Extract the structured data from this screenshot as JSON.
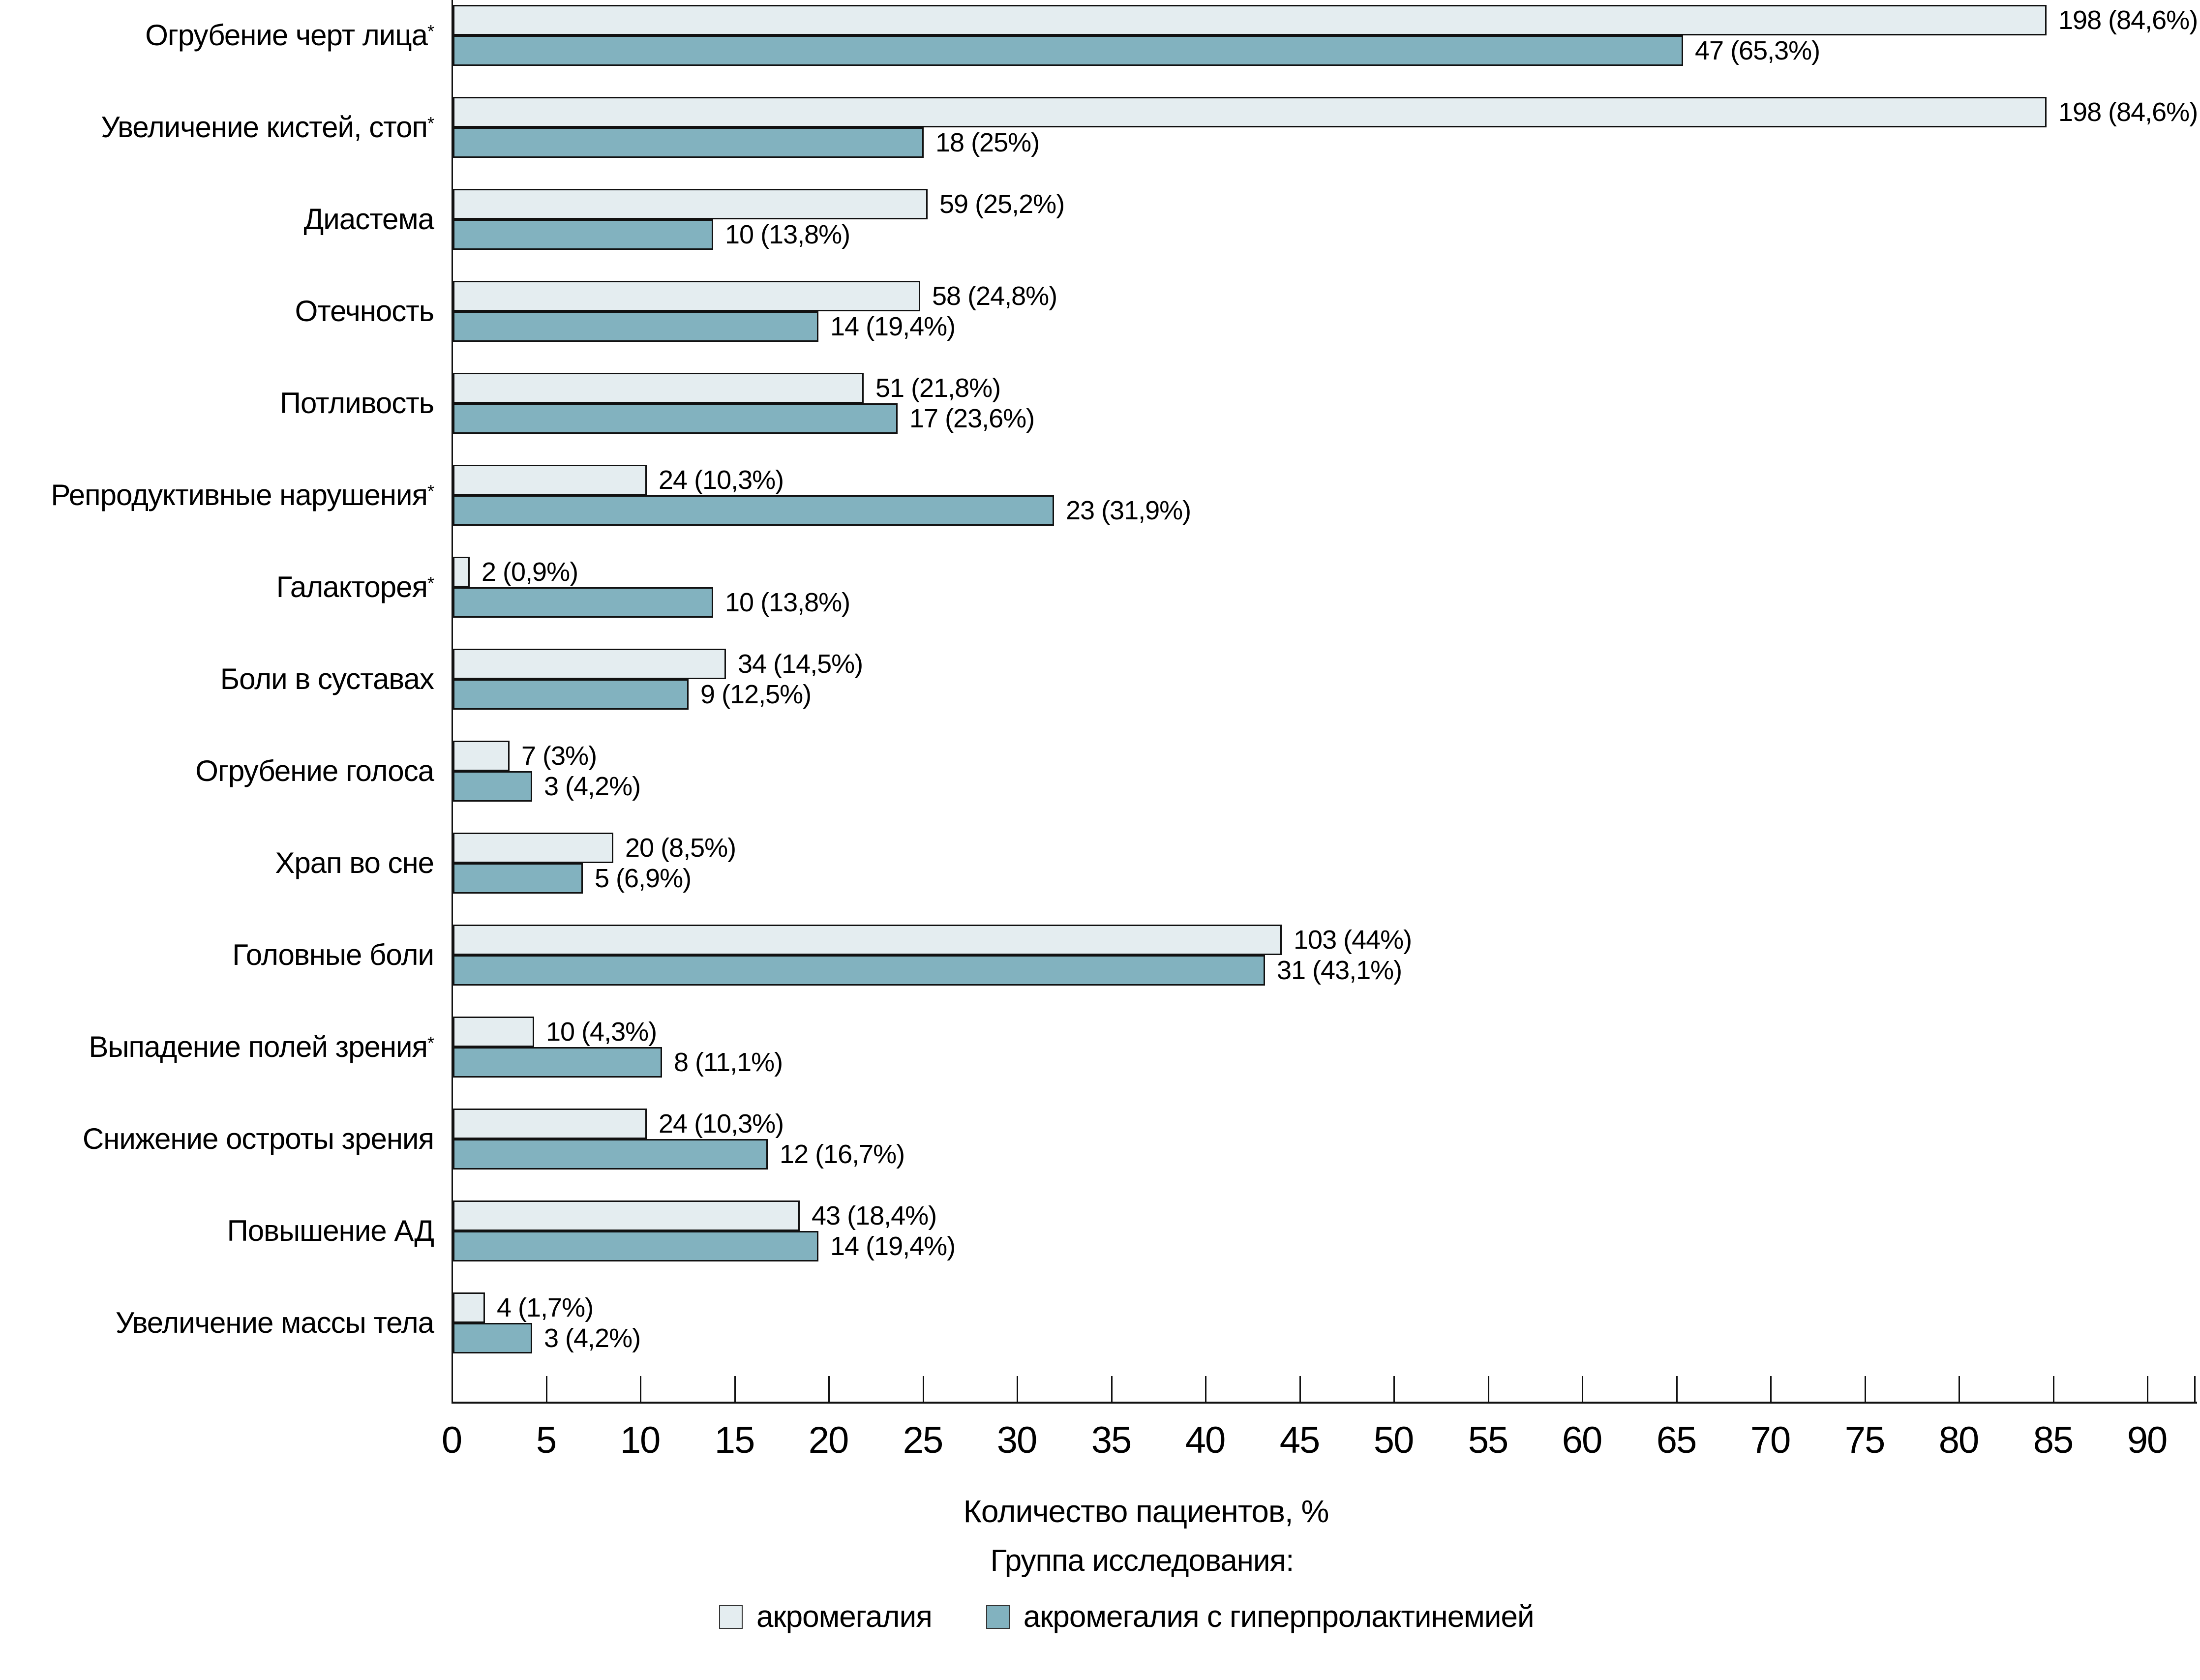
{
  "chart_data": {
    "type": "bar",
    "orientation": "horizontal",
    "xlabel": "Количество пациентов, %",
    "xlim": [
      0,
      92.5
    ],
    "x_ticks": [
      0,
      5,
      10,
      15,
      20,
      25,
      30,
      35,
      40,
      45,
      50,
      55,
      60,
      65,
      70,
      75,
      80,
      85,
      90
    ],
    "grid": false,
    "legend_position": "bottom",
    "legend_title": "Группа исследования:",
    "categories": [
      "Огрубение черт лица*",
      "Увеличение кистей, стоп*",
      "Диастема",
      "Отечность",
      "Потливость",
      "Репродуктивные нарушения*",
      "Галакторея*",
      "Боли в суставах",
      "Огрубение голоса",
      "Храп во сне",
      "Головные боли",
      "Выпадение полей зрения*",
      "Снижение остроты зрения",
      "Повышение АД",
      "Увеличение массы тела"
    ],
    "series": [
      {
        "name": "акромегалия",
        "color": "#e4edf0",
        "counts": [
          198,
          198,
          59,
          58,
          51,
          24,
          2,
          34,
          7,
          20,
          103,
          10,
          24,
          43,
          4
        ],
        "percent": [
          84.6,
          84.6,
          25.2,
          24.8,
          21.8,
          10.3,
          0.9,
          14.5,
          3,
          8.5,
          44,
          4.3,
          10.3,
          18.4,
          1.7
        ],
        "labels": [
          "198 (84,6%)",
          "198 (84,6%)",
          "59 (25,2%)",
          "58 (24,8%)",
          "51 (21,8%)",
          "24 (10,3%)",
          "2 (0,9%)",
          "34 (14,5%)",
          "7 (3%)",
          "20 (8,5%)",
          "103 (44%)",
          "10 (4,3%)",
          "24 (10,3%)",
          "43 (18,4%)",
          "4 (1,7%)"
        ]
      },
      {
        "name": "акромегалия с гиперпролактинемией",
        "color": "#82b2bf",
        "counts": [
          47,
          18,
          10,
          14,
          17,
          23,
          10,
          9,
          3,
          5,
          31,
          8,
          12,
          14,
          3
        ],
        "percent": [
          65.3,
          25,
          13.8,
          19.4,
          23.6,
          31.9,
          13.8,
          12.5,
          4.2,
          6.9,
          43.1,
          11.1,
          16.7,
          19.4,
          4.2
        ],
        "labels": [
          "47 (65,3%)",
          "18 (25%)",
          "10 (13,8%)",
          "14 (19,4%)",
          "17 (23,6%)",
          "23 (31,9%)",
          "10 (13,8%)",
          "9 (12,5%)",
          "3 (4,2%)",
          "5 (6,9%)",
          "31 (43,1%)",
          "8 (11,1%)",
          "12 (16,7%)",
          "14 (19,4%)",
          "3 (4,2%)"
        ]
      }
    ],
    "style": {
      "bar_outline": "#111111",
      "axis_color": "#111111",
      "series1_fill": "#e4edf0",
      "series2_fill": "#82b2bf"
    }
  }
}
